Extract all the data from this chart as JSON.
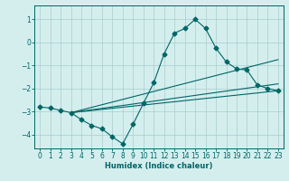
{
  "xlabel": "Humidex (Indice chaleur)",
  "bg_color": "#d4eeee",
  "grid_color": "#aacccc",
  "line_color": "#006666",
  "marker": "D",
  "markersize": 2.5,
  "xlim": [
    -0.5,
    23.5
  ],
  "ylim": [
    -4.6,
    1.6
  ],
  "xticks": [
    0,
    1,
    2,
    3,
    4,
    5,
    6,
    7,
    8,
    9,
    10,
    11,
    12,
    13,
    14,
    15,
    16,
    17,
    18,
    19,
    20,
    21,
    22,
    23
  ],
  "yticks": [
    -4,
    -3,
    -2,
    -1,
    0,
    1
  ],
  "series": [
    [
      0,
      -2.8
    ],
    [
      1,
      -2.85
    ],
    [
      2,
      -2.95
    ],
    [
      3,
      -3.05
    ],
    [
      4,
      -3.35
    ],
    [
      5,
      -3.6
    ],
    [
      6,
      -3.75
    ],
    [
      7,
      -4.1
    ],
    [
      8,
      -4.4
    ],
    [
      9,
      -3.55
    ],
    [
      10,
      -2.65
    ],
    [
      11,
      -1.75
    ],
    [
      12,
      -0.5
    ],
    [
      13,
      0.4
    ],
    [
      14,
      0.6
    ],
    [
      15,
      1.0
    ],
    [
      16,
      0.6
    ],
    [
      17,
      -0.25
    ],
    [
      18,
      -0.85
    ],
    [
      19,
      -1.15
    ],
    [
      20,
      -1.2
    ],
    [
      21,
      -1.85
    ],
    [
      22,
      -2.0
    ],
    [
      23,
      -2.1
    ]
  ],
  "straight_lines": [
    [
      [
        3,
        -3.05
      ],
      [
        23,
        -0.75
      ]
    ],
    [
      [
        3,
        -3.05
      ],
      [
        23,
        -1.8
      ]
    ],
    [
      [
        3,
        -3.05
      ],
      [
        23,
        -2.1
      ]
    ]
  ]
}
